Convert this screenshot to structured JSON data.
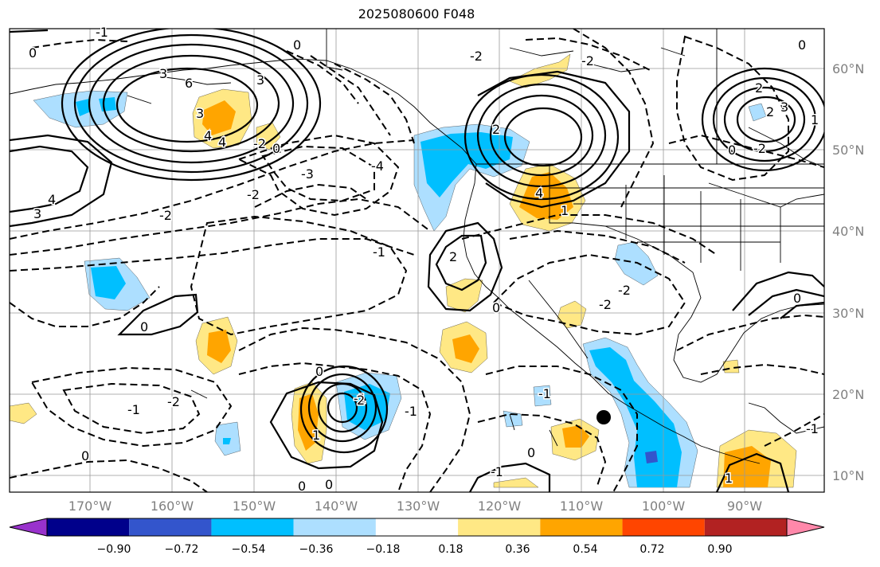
{
  "title": "2025080600 F048",
  "lat_labels": [
    "60°N",
    "50°N",
    "40°N",
    "30°N",
    "20°N",
    "10°N"
  ],
  "lon_labels": [
    "170°W",
    "160°W",
    "150°W",
    "140°W",
    "130°W",
    "120°W",
    "110°W",
    "100°W",
    "90°W"
  ],
  "colorbar": {
    "colors": [
      "#9932CC",
      "#00008B",
      "#3355CC",
      "#00BFFF",
      "#ADDFFF",
      "#FFFFFF",
      "#FFE885",
      "#FFA500",
      "#FF4500",
      "#B22222",
      "#FF88AA"
    ],
    "tick_labels": [
      "−0.90",
      "−0.72",
      "−0.54",
      "−0.36",
      "−0.18",
      "0.18",
      "0.36",
      "0.54",
      "0.72",
      "0.90"
    ]
  },
  "contour_labels": [
    "-1",
    "0",
    "3",
    "6",
    "4",
    "3",
    "-2",
    "0",
    "-2",
    "-3",
    "-4",
    "-2",
    "-1",
    "-2",
    "0",
    "2",
    "4",
    "2",
    "0",
    "-2",
    "0",
    "-2",
    "2",
    "0",
    "-1",
    "-2",
    "0",
    "-1",
    "0",
    "1",
    "0",
    "-1",
    "-1",
    "0",
    "1",
    "0",
    "1",
    "-1",
    "3",
    "-2",
    "4",
    "3",
    "-2",
    "0",
    "-1",
    "2",
    "1",
    "4",
    "2",
    "0",
    "3"
  ],
  "colors": {
    "land_line": "#000000",
    "grid": "#999999"
  }
}
